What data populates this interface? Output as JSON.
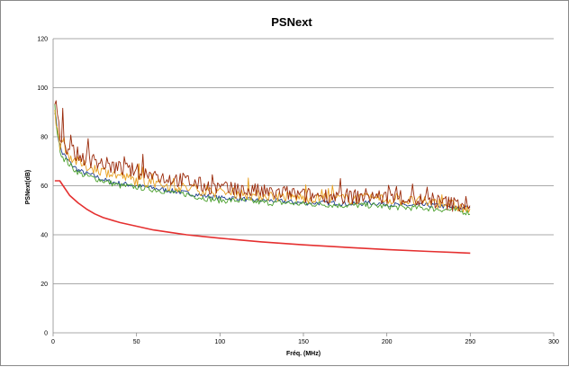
{
  "chart_data": {
    "type": "line",
    "title": "PSNext",
    "xlabel": "Fréq. (MHz)",
    "ylabel": "PSNext(dB)",
    "xlim": [
      0,
      300
    ],
    "ylim": [
      0,
      120
    ],
    "x_ticks": [
      "0",
      "50",
      "100",
      "150",
      "200",
      "250",
      "300"
    ],
    "y_ticks": [
      "0",
      "20",
      "40",
      "60",
      "80",
      "100",
      "120"
    ],
    "grid": "horizontal",
    "legend": "none",
    "series": [
      {
        "color": "#e53030",
        "points": [
          [
            1,
            62
          ],
          [
            4,
            62
          ],
          [
            6,
            60
          ],
          [
            10,
            56
          ],
          [
            15,
            53
          ],
          [
            20,
            50.5
          ],
          [
            25,
            48.5
          ],
          [
            30,
            47
          ],
          [
            40,
            45
          ],
          [
            50,
            43.5
          ],
          [
            60,
            42
          ],
          [
            70,
            41
          ],
          [
            80,
            40
          ],
          [
            90,
            39.3
          ],
          [
            100,
            38.6
          ],
          [
            125,
            37.1
          ],
          [
            150,
            35.9
          ],
          [
            175,
            34.9
          ],
          [
            200,
            34
          ],
          [
            225,
            33.2
          ],
          [
            250,
            32.5
          ]
        ]
      },
      {
        "color": "#1f3f8f",
        "points": [
          [
            1,
            91
          ],
          [
            3,
            80
          ],
          [
            5,
            74
          ],
          [
            8,
            71
          ],
          [
            12,
            68
          ],
          [
            16,
            66
          ],
          [
            20,
            65
          ],
          [
            25,
            64
          ],
          [
            30,
            62.5
          ],
          [
            35,
            61.5
          ],
          [
            40,
            61
          ],
          [
            50,
            60
          ],
          [
            60,
            59
          ],
          [
            70,
            58
          ],
          [
            80,
            57
          ],
          [
            90,
            56
          ],
          [
            100,
            55
          ],
          [
            110,
            55
          ],
          [
            120,
            54
          ],
          [
            130,
            54
          ],
          [
            140,
            53.5
          ],
          [
            150,
            53
          ],
          [
            160,
            53
          ],
          [
            170,
            53
          ],
          [
            180,
            52.5
          ],
          [
            190,
            53
          ],
          [
            200,
            52.5
          ],
          [
            210,
            52
          ],
          [
            220,
            52
          ],
          [
            230,
            52
          ],
          [
            240,
            51
          ],
          [
            250,
            51
          ]
        ]
      },
      {
        "color": "#4aa02c",
        "points": [
          [
            1,
            92
          ],
          [
            3,
            79
          ],
          [
            5,
            73
          ],
          [
            8,
            70
          ],
          [
            12,
            67
          ],
          [
            16,
            65
          ],
          [
            20,
            64
          ],
          [
            25,
            63
          ],
          [
            30,
            62
          ],
          [
            35,
            61
          ],
          [
            40,
            60
          ],
          [
            50,
            59.5
          ],
          [
            60,
            58.5
          ],
          [
            70,
            57.5
          ],
          [
            80,
            56.5
          ],
          [
            90,
            55
          ],
          [
            100,
            54
          ],
          [
            110,
            54
          ],
          [
            120,
            53.5
          ],
          [
            130,
            53
          ],
          [
            140,
            53
          ],
          [
            150,
            52.5
          ],
          [
            160,
            52.5
          ],
          [
            170,
            52
          ],
          [
            180,
            52
          ],
          [
            190,
            52
          ],
          [
            200,
            51.5
          ],
          [
            210,
            51
          ],
          [
            220,
            51
          ],
          [
            230,
            50.5
          ],
          [
            240,
            50
          ],
          [
            250,
            49
          ]
        ]
      },
      {
        "color": "#e8a020",
        "points": [
          [
            1,
            90
          ],
          [
            3,
            80
          ],
          [
            5,
            76
          ],
          [
            8,
            73
          ],
          [
            12,
            71
          ],
          [
            16,
            69
          ],
          [
            20,
            68
          ],
          [
            25,
            67
          ],
          [
            30,
            66
          ],
          [
            35,
            65
          ],
          [
            40,
            64
          ],
          [
            50,
            62
          ],
          [
            60,
            61
          ],
          [
            70,
            60
          ],
          [
            80,
            59
          ],
          [
            90,
            58
          ],
          [
            100,
            57
          ],
          [
            110,
            57
          ],
          [
            120,
            56
          ],
          [
            130,
            56
          ],
          [
            140,
            55.5
          ],
          [
            150,
            55
          ],
          [
            160,
            55
          ],
          [
            170,
            55
          ],
          [
            180,
            54.5
          ],
          [
            190,
            55
          ],
          [
            200,
            54.5
          ],
          [
            210,
            54
          ],
          [
            220,
            53.5
          ],
          [
            230,
            53
          ],
          [
            240,
            52
          ],
          [
            250,
            50
          ]
        ]
      },
      {
        "color": "#9a2a0a",
        "points": [
          [
            1,
            95
          ],
          [
            3,
            84
          ],
          [
            5,
            79
          ],
          [
            8,
            76
          ],
          [
            12,
            74
          ],
          [
            16,
            72
          ],
          [
            20,
            71
          ],
          [
            25,
            70
          ],
          [
            30,
            69
          ],
          [
            35,
            68
          ],
          [
            40,
            67
          ],
          [
            50,
            66
          ],
          [
            60,
            64
          ],
          [
            70,
            63
          ],
          [
            80,
            62
          ],
          [
            90,
            60
          ],
          [
            100,
            59
          ],
          [
            110,
            58
          ],
          [
            120,
            58
          ],
          [
            130,
            57
          ],
          [
            140,
            57
          ],
          [
            150,
            56
          ],
          [
            160,
            56
          ],
          [
            170,
            56
          ],
          [
            180,
            55.5
          ],
          [
            190,
            56
          ],
          [
            200,
            55
          ],
          [
            210,
            55
          ],
          [
            220,
            54
          ],
          [
            230,
            53.5
          ],
          [
            240,
            52.5
          ],
          [
            250,
            53
          ]
        ]
      }
    ]
  }
}
